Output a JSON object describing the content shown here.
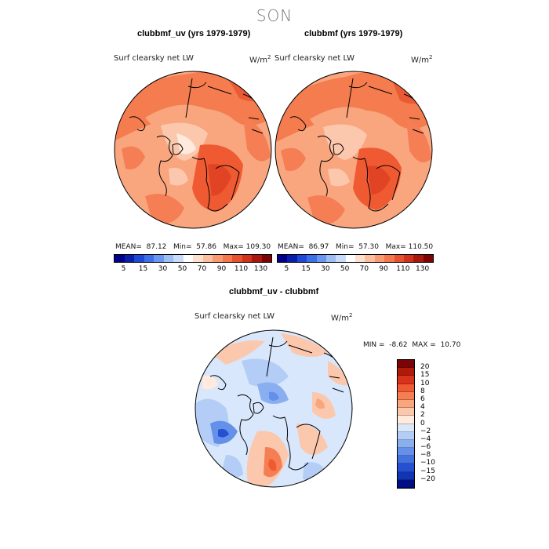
{
  "season": "SON",
  "panels": [
    {
      "title": "clubbmf_uv (yrs 1979-1979)",
      "label": "Surf clearsky net LW",
      "units_base": "W/m",
      "units_exp": "2",
      "mean_label": "MEAN=",
      "mean": "87.12",
      "min_label": "Min=",
      "min": "57.86",
      "max_label": "Max=",
      "max": "109.30"
    },
    {
      "title": "clubbmf (yrs 1979-1979)",
      "label": "Surf clearsky net LW",
      "units_base": "W/m",
      "units_exp": "2",
      "mean_label": "MEAN=",
      "mean": "86.97",
      "min_label": "Min=",
      "min": "57.30",
      "max_label": "Max=",
      "max": "110.50"
    }
  ],
  "top_colorbar": {
    "colors": [
      "#00008b",
      "#0a1fa8",
      "#1f48d6",
      "#3d6fe6",
      "#6a96ef",
      "#9dbdf4",
      "#c8dbfa",
      "#ffffff",
      "#fde0ce",
      "#fbbf9e",
      "#f99a70",
      "#f5774c",
      "#e8512d",
      "#d0331a",
      "#a8180c",
      "#7d0404"
    ],
    "ticks": [
      "5",
      "15",
      "30",
      "50",
      "70",
      "90",
      "110",
      "130"
    ]
  },
  "diff": {
    "title": "clubbmf_uv - clubbmf",
    "label": "Surf clearsky net LW",
    "units_base": "W/m",
    "units_exp": "2",
    "min_label": "MIN =",
    "min": "-8.62",
    "max_label": "MAX =",
    "max": "10.70"
  },
  "diff_colorbar": {
    "colors": [
      "#7d0404",
      "#b01a0a",
      "#d8321b",
      "#ef5a32",
      "#f57e55",
      "#f9a67f",
      "#fcc8ad",
      "#ffeadd",
      "#d8e7fb",
      "#b3cdf6",
      "#8aaff0",
      "#6590ea",
      "#4271e0",
      "#2550d2",
      "#1233b2",
      "#000f86"
    ],
    "ticks": [
      "20",
      "15",
      "10",
      "8",
      "6",
      "4",
      "2",
      "0",
      "−2",
      "−4",
      "−6",
      "−8",
      "−10",
      "−15",
      "−20"
    ]
  }
}
